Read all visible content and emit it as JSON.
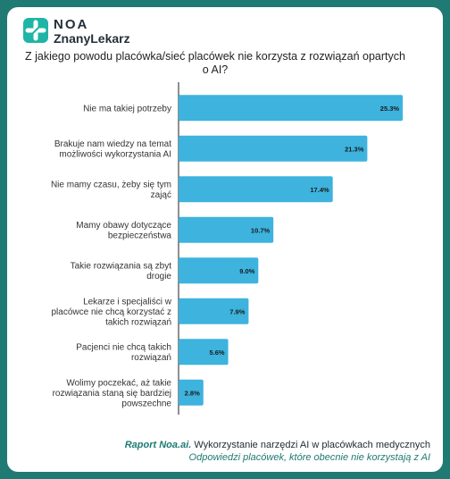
{
  "brand": {
    "line1": "NOA",
    "line2": "ZnanyLekarz",
    "icon": "znanylekarz-plus-logo-icon",
    "color": "#1fb5a6"
  },
  "colors": {
    "bar": "#3db3de",
    "background": "#1f7a73",
    "footer_accent": "#1e7a73"
  },
  "chart_data": {
    "type": "bar",
    "orientation": "horizontal",
    "title": "Z jakiego powodu placówka/sieć placówek nie korzysta z rozwiązań opartych o AI?",
    "categories": [
      [
        "Nie ma takiej potrzeby"
      ],
      [
        "Brakuje nam wiedzy na temat",
        "możliwości wykorzystania AI"
      ],
      [
        "Nie mamy czasu, żeby się tym",
        "zająć"
      ],
      [
        "Mamy obawy dotyczące",
        "bezpieczeństwa"
      ],
      [
        "Takie rozwiązania są zbyt",
        "drogie"
      ],
      [
        "Lekarze i specjaliści w",
        "placówce nie chcą korzystać z",
        "takich rozwiązań"
      ],
      [
        "Pacjenci nie chcą takich",
        "rozwiązań"
      ],
      [
        "Wolimy poczekać, aż takie",
        "rozwiązania staną się bardziej",
        "powszechne"
      ]
    ],
    "values": [
      25.3,
      21.3,
      17.4,
      10.7,
      9.0,
      7.9,
      5.6,
      2.8
    ],
    "value_labels": [
      "25.3%",
      "21.3%",
      "17.4%",
      "10.7%",
      "9.0%",
      "7.9%",
      "5.6%",
      "2.8%"
    ],
    "xlim": [
      0,
      26.5
    ],
    "grid": false
  },
  "footer": {
    "line1_emphasis": "Raport Noa.ai.",
    "line1_rest": " Wykorzystanie narzędzi AI w placówkach medycznych",
    "line2": "Odpowiedzi placówek, które obecnie nie korzystają z AI"
  }
}
